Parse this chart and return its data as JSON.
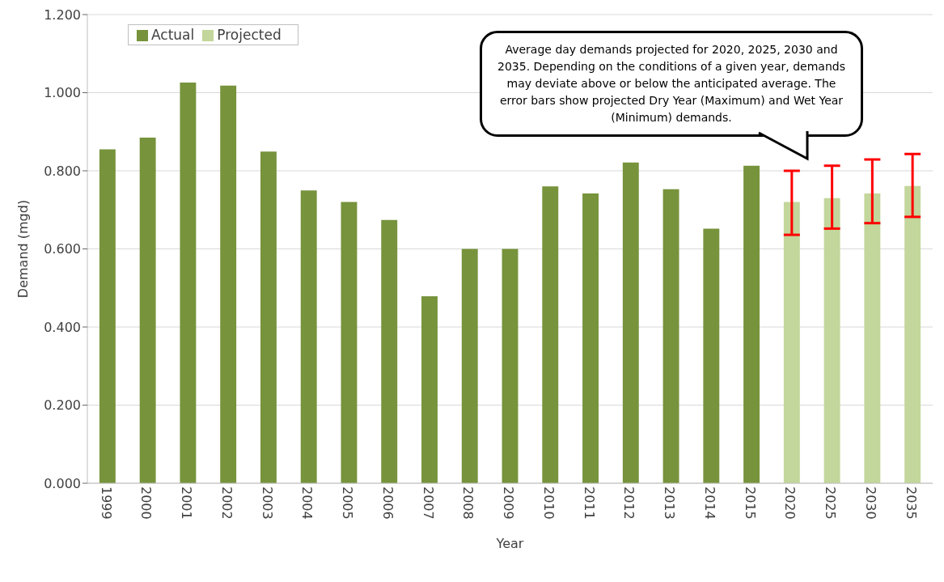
{
  "chart_data": {
    "type": "bar",
    "xlabel": "Year",
    "ylabel": "Demand (mgd)",
    "categories": [
      "1999",
      "2000",
      "2001",
      "2002",
      "2003",
      "2004",
      "2005",
      "2006",
      "2007",
      "2008",
      "2009",
      "2010",
      "2011",
      "2012",
      "2013",
      "2014",
      "2015",
      "2020",
      "2025",
      "2030",
      "2035"
    ],
    "series": [
      {
        "name": "Actual",
        "color": "#77933c",
        "values": [
          0.855,
          0.885,
          1.026,
          1.018,
          0.849,
          0.75,
          0.72,
          0.674,
          0.479,
          0.6,
          0.6,
          0.76,
          0.742,
          0.821,
          0.753,
          0.652,
          0.813,
          null,
          null,
          null,
          null
        ]
      },
      {
        "name": "Projected",
        "color": "#c3d69b",
        "values": [
          null,
          null,
          null,
          null,
          null,
          null,
          null,
          null,
          null,
          null,
          null,
          null,
          null,
          null,
          null,
          null,
          null,
          0.72,
          0.73,
          0.742,
          0.761
        ],
        "errors": [
          null,
          null,
          null,
          null,
          null,
          null,
          null,
          null,
          null,
          null,
          null,
          null,
          null,
          null,
          null,
          null,
          null,
          [
            0.636,
            0.8
          ],
          [
            0.652,
            0.813
          ],
          [
            0.666,
            0.829
          ],
          [
            0.682,
            0.843
          ]
        ]
      }
    ],
    "ylim": [
      0,
      1.2
    ],
    "yticks": [
      {
        "value": 0,
        "label": "0.000"
      },
      {
        "value": 0.2,
        "label": "0.200"
      },
      {
        "value": 0.4,
        "label": "0.400"
      },
      {
        "value": 0.6,
        "label": "0.600"
      },
      {
        "value": 0.8,
        "label": "0.800"
      },
      {
        "value": 1,
        "label": "1.000"
      },
      {
        "value": 1.2,
        "label": "1.200"
      }
    ],
    "grid": "y",
    "legend": "top left",
    "annotations": [
      "Average day demands projected for 2020, 2025, 2030 and 2035. Depending on the conditions of a given year, demands may deviate above or below the anticipated average. The error bars show projected Dry Year (Maximum) and Wet Year (Minimum) demands."
    ]
  }
}
